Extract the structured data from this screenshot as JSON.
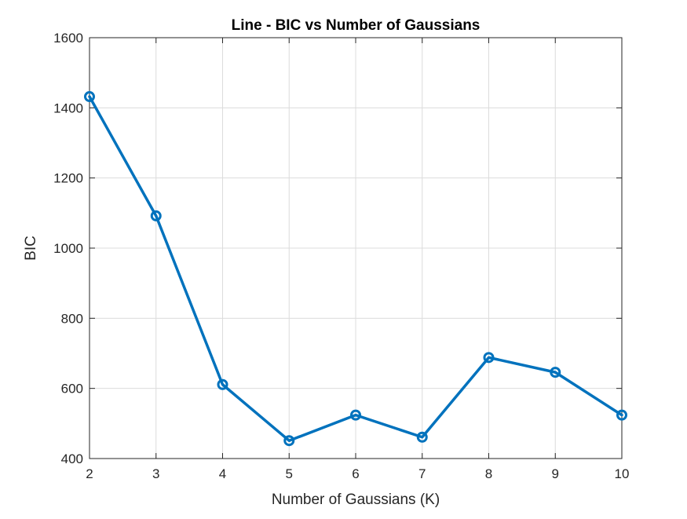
{
  "chart_data": {
    "type": "line",
    "title": "Line - BIC vs Number of Gaussians",
    "xlabel": "Number of Gaussians (K)",
    "ylabel": "BIC",
    "x": [
      2,
      3,
      4,
      5,
      6,
      7,
      8,
      9,
      10
    ],
    "series": [
      {
        "values": [
          1432,
          1092,
          611,
          451,
          524,
          461,
          688,
          646,
          524
        ],
        "color": "#0072BD",
        "marker": "circle"
      }
    ],
    "xlim": [
      2,
      10
    ],
    "ylim": [
      400,
      1600
    ],
    "xticks": [
      "2",
      "3",
      "4",
      "5",
      "6",
      "7",
      "8",
      "9",
      "10"
    ],
    "yticks": [
      "400",
      "600",
      "800",
      "1000",
      "1200",
      "1400",
      "1600"
    ],
    "grid": true,
    "legend": "none"
  }
}
